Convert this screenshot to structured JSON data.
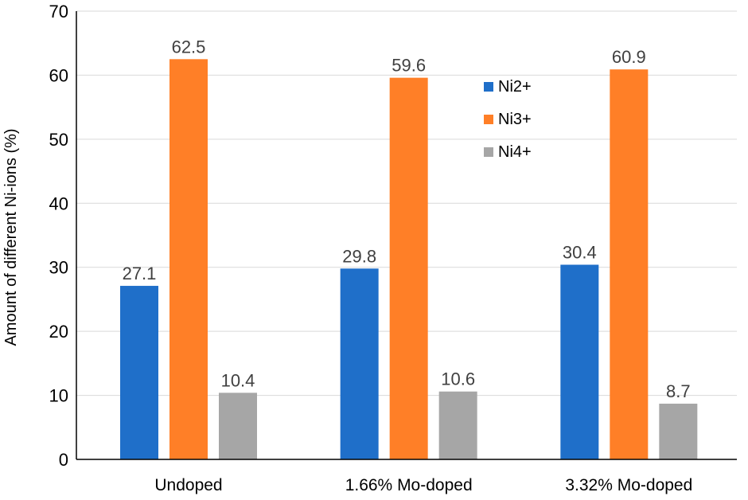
{
  "chart_data": {
    "type": "bar",
    "categories": [
      "Undoped",
      "1.66% Mo-doped",
      "3.32% Mo-doped"
    ],
    "series": [
      {
        "name": "Ni2+",
        "values": [
          27.1,
          29.8,
          30.4
        ],
        "color": "#1f6fc9"
      },
      {
        "name": "Ni3+",
        "values": [
          62.5,
          59.6,
          60.9
        ],
        "color": "#ff7f27"
      },
      {
        "name": "Ni4+",
        "values": [
          10.4,
          10.6,
          8.7
        ],
        "color": "#a6a6a6"
      }
    ],
    "title": "",
    "xlabel": "",
    "ylabel": "Amount of different Ni-ions (%)",
    "ylim": [
      0,
      70
    ],
    "yticks": [
      0,
      10,
      20,
      30,
      40,
      50,
      60,
      70
    ],
    "grid": true,
    "legend_position": "top-center"
  }
}
